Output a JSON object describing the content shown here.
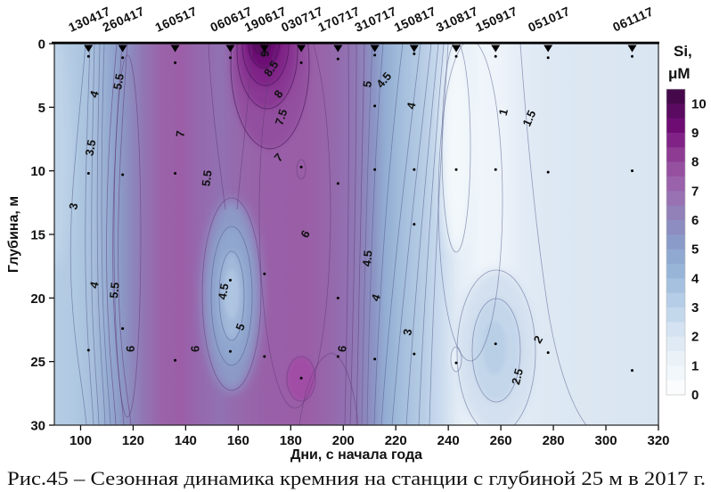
{
  "figure": {
    "caption": "Рис.45 – Сезонная динамика кремния на станции с глубиной 25 м в 2017 г.",
    "xlabel": "Дни, с начала года",
    "ylabel": "Глубина, м"
  },
  "axes": {
    "x_ticks": [
      100,
      120,
      140,
      160,
      180,
      200,
      220,
      240,
      260,
      280,
      300,
      320
    ],
    "x_range": [
      90,
      320
    ],
    "y_ticks": [
      0,
      5,
      10,
      15,
      20,
      25,
      30
    ],
    "y_range": [
      0,
      30
    ],
    "y_inverted": true
  },
  "dates": [
    {
      "label": "130417",
      "day": 103
    },
    {
      "label": "260417",
      "day": 116
    },
    {
      "label": "160517",
      "day": 136
    },
    {
      "label": "060617",
      "day": 157
    },
    {
      "label": "190617",
      "day": 170
    },
    {
      "label": "030717",
      "day": 184
    },
    {
      "label": "170717",
      "day": 198
    },
    {
      "label": "310717",
      "day": 212
    },
    {
      "label": "150817",
      "day": 227
    },
    {
      "label": "310817",
      "day": 243
    },
    {
      "label": "150917",
      "day": 258
    },
    {
      "label": "051017",
      "day": 278
    },
    {
      "label": "061117",
      "day": 310
    }
  ],
  "colorbar": {
    "title_line1": "Si,",
    "title_line2": "μM",
    "min": 0,
    "max": 10.5,
    "step": 0.5,
    "tick_labels": [
      "10",
      "9",
      "8",
      "7",
      "6",
      "5",
      "4",
      "3",
      "2",
      "1",
      "0"
    ],
    "colors_top_to_bottom": [
      "#45094b",
      "#5a0a60",
      "#6e0c74",
      "#812386",
      "#8e3b94",
      "#9650a0",
      "#9a62aa",
      "#9872b3",
      "#9280b9",
      "#8d8dc1",
      "#8b9bc9",
      "#90a9d1",
      "#98b5d8",
      "#a6c1df",
      "#b5cde6",
      "#c4d8ec",
      "#d4e2f1",
      "#e0eaf5",
      "#eaf2f8",
      "#f2f7fb",
      "#fafcfd"
    ]
  },
  "contour_labels": [
    {
      "t": "3",
      "day": 97.6,
      "dep": 12.8,
      "rot": -78
    },
    {
      "t": "3.5",
      "day": 104.1,
      "dep": 8.2,
      "rot": -80
    },
    {
      "t": "4",
      "day": 105.5,
      "dep": 4.0,
      "rot": -72
    },
    {
      "t": "5.5",
      "day": 114.8,
      "dep": 3.0,
      "rot": -80
    },
    {
      "t": "4",
      "day": 105.5,
      "dep": 19.0,
      "rot": -76
    },
    {
      "t": "5.5",
      "day": 113.2,
      "dep": 19.4,
      "rot": -84
    },
    {
      "t": "6",
      "day": 119.3,
      "dep": 24.0,
      "rot": -88
    },
    {
      "t": "6",
      "day": 143.9,
      "dep": 24.0,
      "rot": -88
    },
    {
      "t": "7",
      "day": 138.3,
      "dep": 7.1,
      "rot": -84
    },
    {
      "t": "5.5",
      "day": 148.4,
      "dep": 10.6,
      "rot": -82
    },
    {
      "t": "4.5",
      "day": 154.7,
      "dep": 19.5,
      "rot": -80
    },
    {
      "t": "5",
      "day": 161.1,
      "dep": 22.3,
      "rot": -70
    },
    {
      "t": "9",
      "day": 170.5,
      "dep": 0.8,
      "rot": -88
    },
    {
      "t": "8.5",
      "day": 172.8,
      "dep": 2.0,
      "rot": -55
    },
    {
      "t": "8",
      "day": 175.6,
      "dep": 4.0,
      "rot": -55
    },
    {
      "t": "7.5",
      "day": 176.7,
      "dep": 5.8,
      "rot": -72
    },
    {
      "t": "7",
      "day": 175.6,
      "dep": 9.0,
      "rot": -48
    },
    {
      "t": "6",
      "day": 185.8,
      "dep": 15.0,
      "rot": -60
    },
    {
      "t": "6",
      "day": 199.9,
      "dep": 24.0,
      "rot": -84
    },
    {
      "t": "5",
      "day": 209.5,
      "dep": 3.2,
      "rot": -80
    },
    {
      "t": "4.5",
      "day": 215.7,
      "dep": 2.9,
      "rot": -50
    },
    {
      "t": "4.5",
      "day": 209.5,
      "dep": 16.9,
      "rot": -84
    },
    {
      "t": "4",
      "day": 212.7,
      "dep": 20.0,
      "rot": -70
    },
    {
      "t": "4",
      "day": 226.2,
      "dep": 4.9,
      "rot": -76
    },
    {
      "t": "3",
      "day": 224.8,
      "dep": 22.7,
      "rot": -80
    },
    {
      "t": "1",
      "day": 261.3,
      "dep": 5.4,
      "rot": -76
    },
    {
      "t": "1.5",
      "day": 271.1,
      "dep": 5.9,
      "rot": -66
    },
    {
      "t": "2",
      "day": 274.5,
      "dep": 23.3,
      "rot": -60
    },
    {
      "t": "2.5",
      "day": 266.6,
      "dep": 26.2,
      "rot": -76
    }
  ],
  "sample_points": [
    [
      103,
      1.0
    ],
    [
      103,
      10.2
    ],
    [
      103,
      24.1
    ],
    [
      116,
      1.1
    ],
    [
      116,
      10.3
    ],
    [
      116,
      22.4
    ],
    [
      136,
      1.5
    ],
    [
      136,
      10.2
    ],
    [
      136,
      24.9
    ],
    [
      157,
      1.1
    ],
    [
      157,
      18.6
    ],
    [
      157,
      24.2
    ],
    [
      170,
      0.9
    ],
    [
      170,
      18.1
    ],
    [
      170,
      24.6
    ],
    [
      184,
      1.5
    ],
    [
      184,
      9.7
    ],
    [
      184,
      26.3
    ],
    [
      198,
      1.2
    ],
    [
      198,
      11.0
    ],
    [
      198,
      20.0
    ],
    [
      198,
      24.6
    ],
    [
      212,
      0.9
    ],
    [
      212,
      4.9
    ],
    [
      212,
      9.9
    ],
    [
      212,
      24.8
    ],
    [
      227,
      0.8
    ],
    [
      227,
      9.9
    ],
    [
      227,
      14.2
    ],
    [
      227,
      24.4
    ],
    [
      243,
      1.0
    ],
    [
      243,
      9.9
    ],
    [
      243,
      25.1
    ],
    [
      258,
      1.0
    ],
    [
      258,
      9.9
    ],
    [
      258,
      23.6
    ],
    [
      278,
      1.1
    ],
    [
      278,
      10.1
    ],
    [
      278,
      24.3
    ],
    [
      310,
      1.0
    ],
    [
      310,
      10.0
    ],
    [
      310,
      25.7
    ]
  ],
  "chart_data": {
    "type": "heatmap",
    "subtype": "filled-contour-section",
    "title": "Рис.45 – Сезонная динамика кремния на станции с глубиной 25 м в 2017 г.",
    "xlabel": "Дни, с начала года",
    "ylabel": "Глубина, м",
    "value_label": "Si, μM",
    "x_days": [
      103,
      116,
      136,
      157,
      170,
      184,
      198,
      212,
      227,
      243,
      258,
      278,
      310
    ],
    "x_date_labels": [
      "130417",
      "260417",
      "160517",
      "060617",
      "190617",
      "030717",
      "170717",
      "310717",
      "150817",
      "310817",
      "150917",
      "051017",
      "061117"
    ],
    "y_depths_m": [
      0,
      5,
      10,
      15,
      20,
      25
    ],
    "si_values_by_depth": [
      {
        "date": "130417",
        "values": [
          3.9,
          3.7,
          3.6,
          3.9,
          4.1,
          4.4
        ]
      },
      {
        "date": "260417",
        "values": [
          5.4,
          5.5,
          5.5,
          5.6,
          5.7,
          5.9
        ]
      },
      {
        "date": "160517",
        "values": [
          6.9,
          7.2,
          7.2,
          7.1,
          7.0,
          6.9
        ]
      },
      {
        "date": "060617",
        "values": [
          6.4,
          6.0,
          5.6,
          5.0,
          4.6,
          4.9
        ]
      },
      {
        "date": "190617",
        "values": [
          9.4,
          7.8,
          7.1,
          6.8,
          6.6,
          6.5
        ]
      },
      {
        "date": "030717",
        "values": [
          8.2,
          7.2,
          7.0,
          6.8,
          6.7,
          6.9
        ]
      },
      {
        "date": "170717",
        "values": [
          6.4,
          6.5,
          6.4,
          6.3,
          6.2,
          6.3
        ]
      },
      {
        "date": "310717",
        "values": [
          4.8,
          4.6,
          4.8,
          4.6,
          4.2,
          3.6
        ]
      },
      {
        "date": "150817",
        "values": [
          4.2,
          4.0,
          3.4,
          3.0,
          2.8,
          2.6
        ]
      },
      {
        "date": "310817",
        "values": [
          1.1,
          1.2,
          1.3,
          1.4,
          1.5,
          1.6
        ]
      },
      {
        "date": "150917",
        "values": [
          1.0,
          0.9,
          1.1,
          1.6,
          2.3,
          2.7
        ]
      },
      {
        "date": "051017",
        "values": [
          1.4,
          1.5,
          1.6,
          1.8,
          2.0,
          2.3
        ]
      },
      {
        "date": "061117",
        "values": [
          1.5,
          1.6,
          1.7,
          1.7,
          1.8,
          1.9
        ]
      }
    ],
    "contour_levels": [
      0.5,
      1,
      1.5,
      2,
      2.5,
      3,
      3.5,
      4,
      4.5,
      5,
      5.5,
      6,
      6.5,
      7,
      7.5,
      8,
      8.5,
      9,
      9.5,
      10
    ],
    "value_range": [
      0,
      10.5
    ],
    "x_range": [
      90,
      320
    ],
    "y_range": [
      0,
      30
    ],
    "legend_position": "right",
    "grid": false
  }
}
